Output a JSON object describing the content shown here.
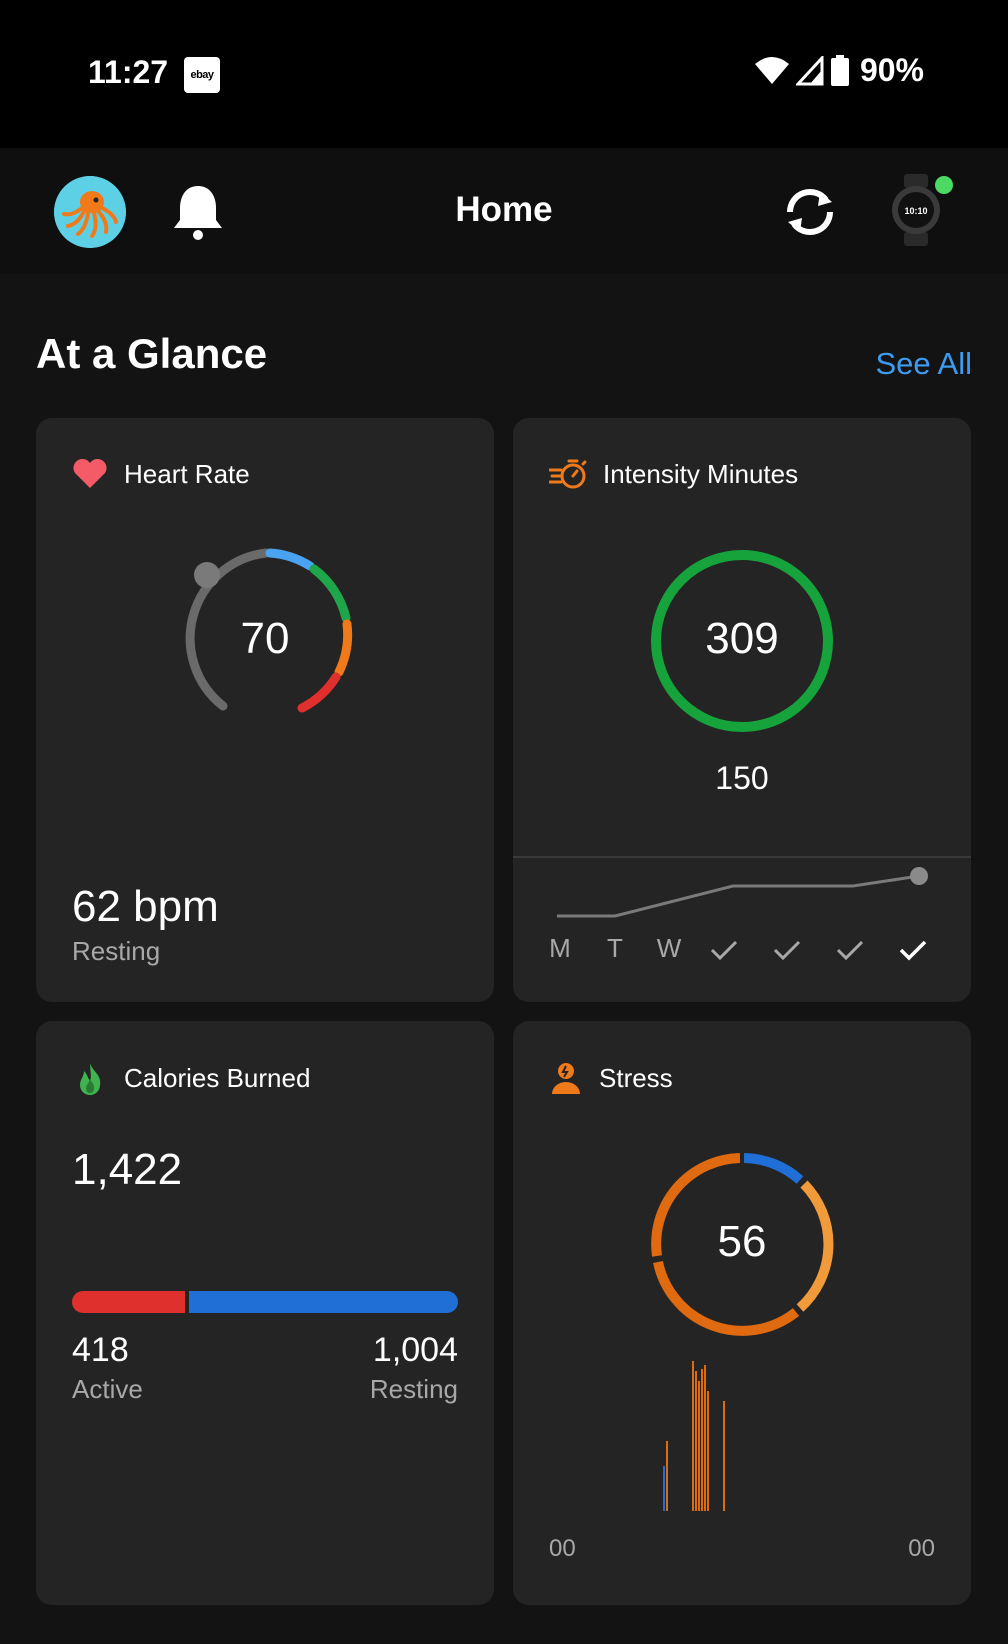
{
  "status_bar": {
    "time": "11:27",
    "notif_icon_label": "ebay",
    "battery": "90%"
  },
  "app_bar": {
    "title": "Home"
  },
  "section": {
    "title": "At a Glance",
    "see_all": "See All"
  },
  "heart_rate": {
    "title": "Heart Rate",
    "value": "70",
    "resting_value": "62 bpm",
    "resting_label": "Resting",
    "colors": {
      "gray": "#6a6a6a",
      "blue": "#4aa3f0",
      "green": "#1fa64a",
      "orange": "#f07a1a",
      "red": "#e0302e",
      "heart": "#f55b66"
    }
  },
  "intensity": {
    "title": "Intensity Minutes",
    "value": "309",
    "goal": "150",
    "ring_color": "#17a33b",
    "week": [
      {
        "day": "M",
        "done": false
      },
      {
        "day": "T",
        "done": false
      },
      {
        "day": "W",
        "done": false
      },
      {
        "day": "",
        "done": true
      },
      {
        "day": "",
        "done": true
      },
      {
        "day": "",
        "done": true
      },
      {
        "day": "",
        "done": true,
        "today": true
      }
    ]
  },
  "calories": {
    "title": "Calories Burned",
    "total": "1,422",
    "active_value": "418",
    "active_label": "Active",
    "resting_value": "1,004",
    "resting_label": "Resting",
    "active_fraction": 0.294,
    "colors": {
      "active": "#e0302e",
      "resting": "#1f6fd6"
    }
  },
  "stress": {
    "title": "Stress",
    "value": "56",
    "axis_start": "00",
    "axis_end": "00",
    "colors": {
      "blue": "#1f6fd6",
      "orange": "#f09a3a",
      "dark_orange": "#e06a10"
    }
  }
}
